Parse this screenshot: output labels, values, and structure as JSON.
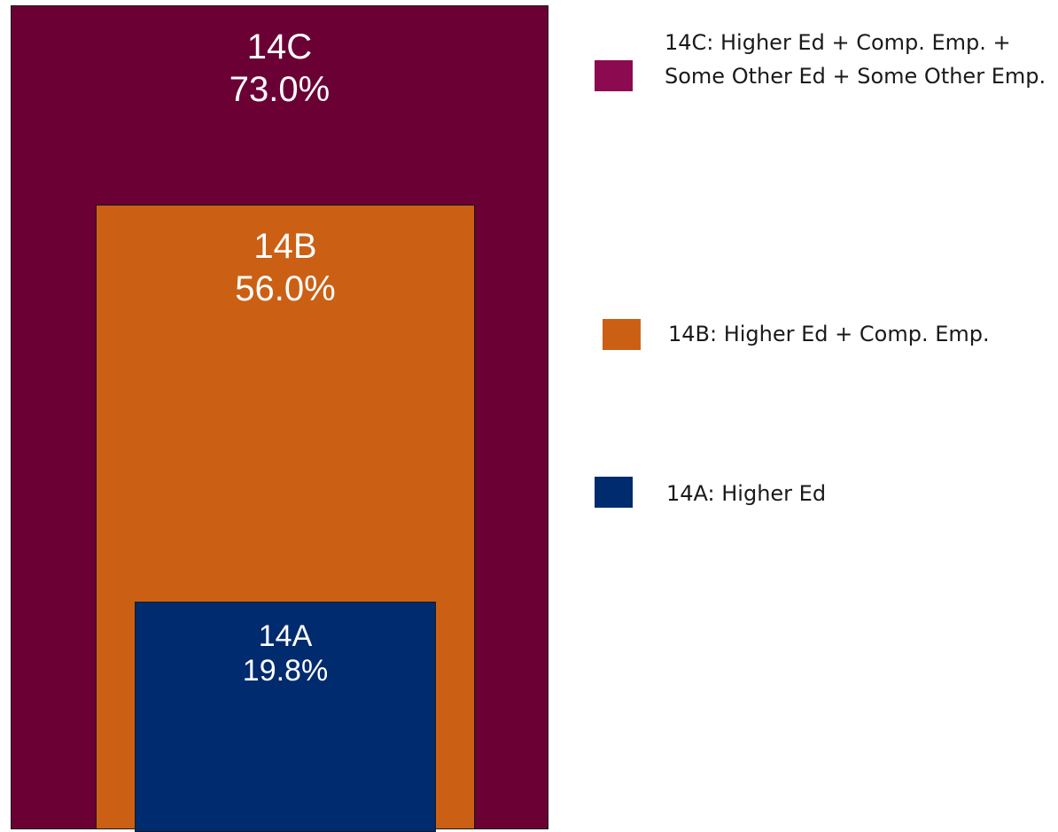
{
  "chart_data": {
    "type": "nested-area",
    "series": [
      {
        "code": "14C",
        "value": 73.0,
        "value_label": "73.0%",
        "legend": "14C: Higher Ed + Comp. Emp. + Some Other Ed + Some Other Emp.",
        "color": "#6b0035",
        "legend_color": "#8b0a50"
      },
      {
        "code": "14B",
        "value": 56.0,
        "value_label": "56.0%",
        "legend": "14B: Higher Ed + Comp. Emp.",
        "color": "#cb6015",
        "legend_color": "#cb6015"
      },
      {
        "code": "14A",
        "value": 19.8,
        "value_label": "19.8%",
        "legend": "14A: Higher Ed",
        "color": "#002b6e",
        "legend_color": "#002b6e"
      }
    ],
    "legend_placement": "right"
  }
}
